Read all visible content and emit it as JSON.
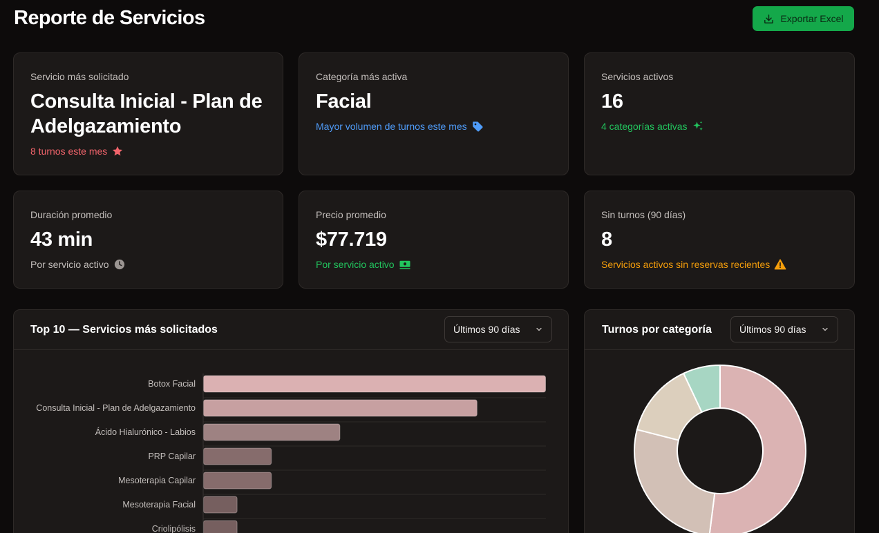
{
  "header": {
    "title": "Reporte de Servicios",
    "export_label": "Exportar Excel"
  },
  "kpis": [
    {
      "label": "Servicio más solicitado",
      "value": "Consulta Inicial - Plan de Adelgazamiento",
      "sub": "8 turnos este mes",
      "sub_color": "#f2646b",
      "icon": "star-icon"
    },
    {
      "label": "Categoría más activa",
      "value": "Facial",
      "sub": "Mayor volumen de turnos este mes",
      "sub_color": "#4f9cf9",
      "icon": "tag-icon"
    },
    {
      "label": "Servicios activos",
      "value": "16",
      "sub": "4 categorías activas",
      "sub_color": "#22c55e",
      "icon": "sparkles-icon"
    },
    {
      "label": "Duración promedio",
      "value": "43 min",
      "sub": "Por servicio activo",
      "sub_color": "#c4bfbc",
      "icon": "clock-icon"
    },
    {
      "label": "Precio promedio",
      "value": "$77.719",
      "sub": "Por servicio activo",
      "sub_color": "#22c55e",
      "icon": "cash-icon"
    },
    {
      "label": "Sin turnos (90 días)",
      "value": "8",
      "sub": "Servicios activos sin reservas recientes",
      "sub_color": "#f59e0b",
      "icon": "warning-icon"
    }
  ],
  "top_panel": {
    "title": "Top 10 — Servicios más solicitados",
    "filter": "Últimos 90 días"
  },
  "category_panel": {
    "title": "Turnos por categoría",
    "filter": "Últimos 90 días"
  },
  "chart_data": [
    {
      "type": "bar",
      "orientation": "horizontal",
      "categories": [
        "Botox Facial",
        "Consulta Inicial - Plan de Adelgazamiento",
        "Ácido Hialurónico - Labios",
        "PRP Capilar",
        "Mesoterapia Capilar",
        "Mesoterapia Facial",
        "Criolipólisis"
      ],
      "values": [
        10,
        8,
        4,
        2,
        2,
        1,
        1
      ],
      "colors": [
        "#dbb1b2",
        "#c7a0a1",
        "#9e8282",
        "#866c6c",
        "#866c6c",
        "#765f5f",
        "#765f5f"
      ]
    },
    {
      "type": "pie",
      "donut": true,
      "values": [
        52,
        27,
        14,
        7
      ],
      "colors": [
        "#dbb3b3",
        "#d2c0b6",
        "#dccfbd",
        "#a7d6c3"
      ]
    }
  ]
}
